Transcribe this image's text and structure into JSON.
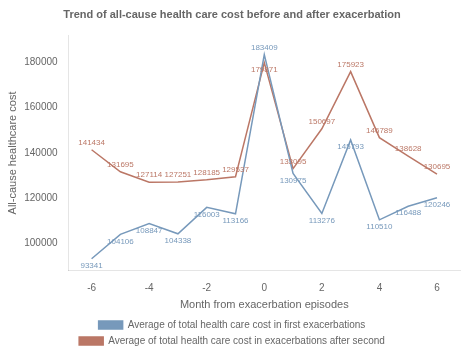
{
  "chart_data": {
    "type": "line",
    "title": "Trend of all-cause health care cost before and after exacerbation",
    "xlabel": "Month from exacerbation episodes",
    "ylabel": "All-cause healthcare cost",
    "x": [
      -6,
      -5,
      -4,
      -3,
      -2,
      -1,
      0,
      1,
      2,
      3,
      4,
      5,
      6
    ],
    "series": [
      {
        "name": "Average of total health care cost in first exacerbations",
        "color": "#7799BB",
        "values": [
          93341,
          104106,
          108847,
          104338,
          116003,
          113166,
          183409,
          130975,
          113276,
          145793,
          110510,
          116488,
          120246
        ]
      },
      {
        "name": "Average of total health care cost in exacerbations after second",
        "color": "#BB7766",
        "values": [
          141434,
          131695,
          127114,
          127251,
          128185,
          129537,
          179871,
          133095,
          150697,
          175923,
          146789,
          138628,
          130695
        ]
      }
    ],
    "xlim": [
      -6.8,
      6.8
    ],
    "xticks": [
      -6,
      -4,
      -2,
      0,
      2,
      4,
      6
    ],
    "ylim": [
      88000,
      192000
    ],
    "yticks": [
      100000,
      120000,
      140000,
      160000,
      180000
    ],
    "grid": false,
    "legend": "bottom",
    "data_labels": true
  }
}
